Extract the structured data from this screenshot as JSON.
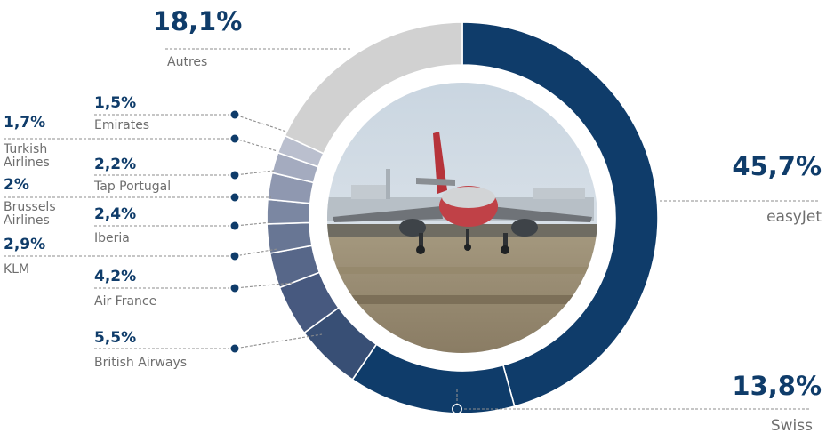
{
  "chart_data": {
    "type": "pie",
    "style": "donut with photo in center",
    "legend": "none",
    "slices": [
      {
        "key": "easyjet",
        "name": "easyJet",
        "value": 45.7,
        "value_label": "45,7%",
        "color": "#0f3c6a"
      },
      {
        "key": "swiss",
        "name": "Swiss",
        "value": 13.8,
        "value_label": "13,8%",
        "color": "#0f3c6a"
      },
      {
        "key": "british-airways",
        "name": "British Airways",
        "value": 5.5,
        "value_label": "5,5%",
        "color": "#384f75"
      },
      {
        "key": "air-france",
        "name": "Air France",
        "value": 4.2,
        "value_label": "4,2%",
        "color": "#47597f"
      },
      {
        "key": "klm",
        "name": "KLM",
        "value": 2.9,
        "value_label": "2,9%",
        "color": "#576789"
      },
      {
        "key": "iberia",
        "name": "Iberia",
        "value": 2.4,
        "value_label": "2,4%",
        "color": "#687694"
      },
      {
        "key": "brussels-airlines",
        "name": "Brussels Airlines",
        "value": 2.0,
        "value_label": "2%",
        "color": "#7b87a2"
      },
      {
        "key": "tap-portugal",
        "name": "Tap Portugal",
        "value": 2.2,
        "value_label": "2,2%",
        "color": "#8f98b0"
      },
      {
        "key": "turkish-airlines",
        "name": "Turkish Airlines",
        "value": 1.7,
        "value_label": "1,7%",
        "color": "#a4abbf"
      },
      {
        "key": "emirates",
        "name": "Emirates",
        "value": 1.5,
        "value_label": "1,5%",
        "color": "#babfce"
      },
      {
        "key": "autres",
        "name": "Autres",
        "value": 18.1,
        "value_label": "18,1%",
        "color": "#d1d1d1"
      }
    ]
  }
}
